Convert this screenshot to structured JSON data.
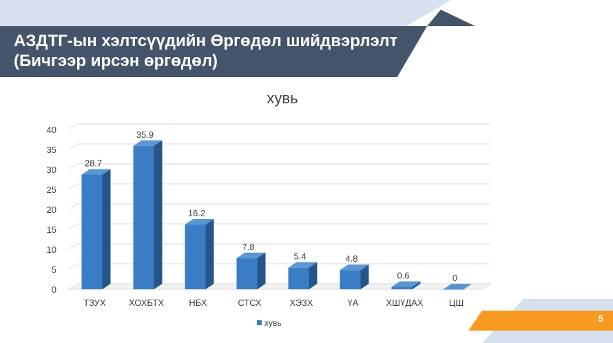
{
  "slide": {
    "title_line1": "АЗДТГ-ын хэлтсүүдийн Өргөдөл шийдвэрлэлт",
    "title_line2": "(Бичгээр ирсэн өргөдөл)",
    "page_number": "5",
    "colors": {
      "banner": "#44546a",
      "accent_light": "#c9d6ea",
      "accent_orange": "#f79a1e",
      "bar_front": "#3b7dc4",
      "bar_side": "#24568c",
      "bar_top": "#5a96d4"
    }
  },
  "chart_data": {
    "type": "bar",
    "title": "хувь",
    "categories": [
      "ТЗУХ",
      "ХОХБТХ",
      "НБХ",
      "СТСХ",
      "ХЭЗХ",
      "ҮА",
      "ХШҮДАХ",
      "ЦШ"
    ],
    "series": [
      {
        "name": "хувь",
        "values": [
          28.7,
          35.9,
          16.2,
          7.8,
          5.4,
          4.8,
          0.6,
          0
        ]
      }
    ],
    "data_labels": [
      "28.7",
      "35.9",
      "16.2",
      "7.8",
      "5.4",
      "4.8",
      "0.6",
      "0"
    ],
    "yticks": [
      0,
      5,
      10,
      15,
      20,
      25,
      30,
      35,
      40
    ],
    "ylim": [
      0,
      40
    ],
    "grid": true,
    "three_d": true,
    "legend": {
      "position": "bottom",
      "entries": [
        "хувь"
      ]
    }
  }
}
